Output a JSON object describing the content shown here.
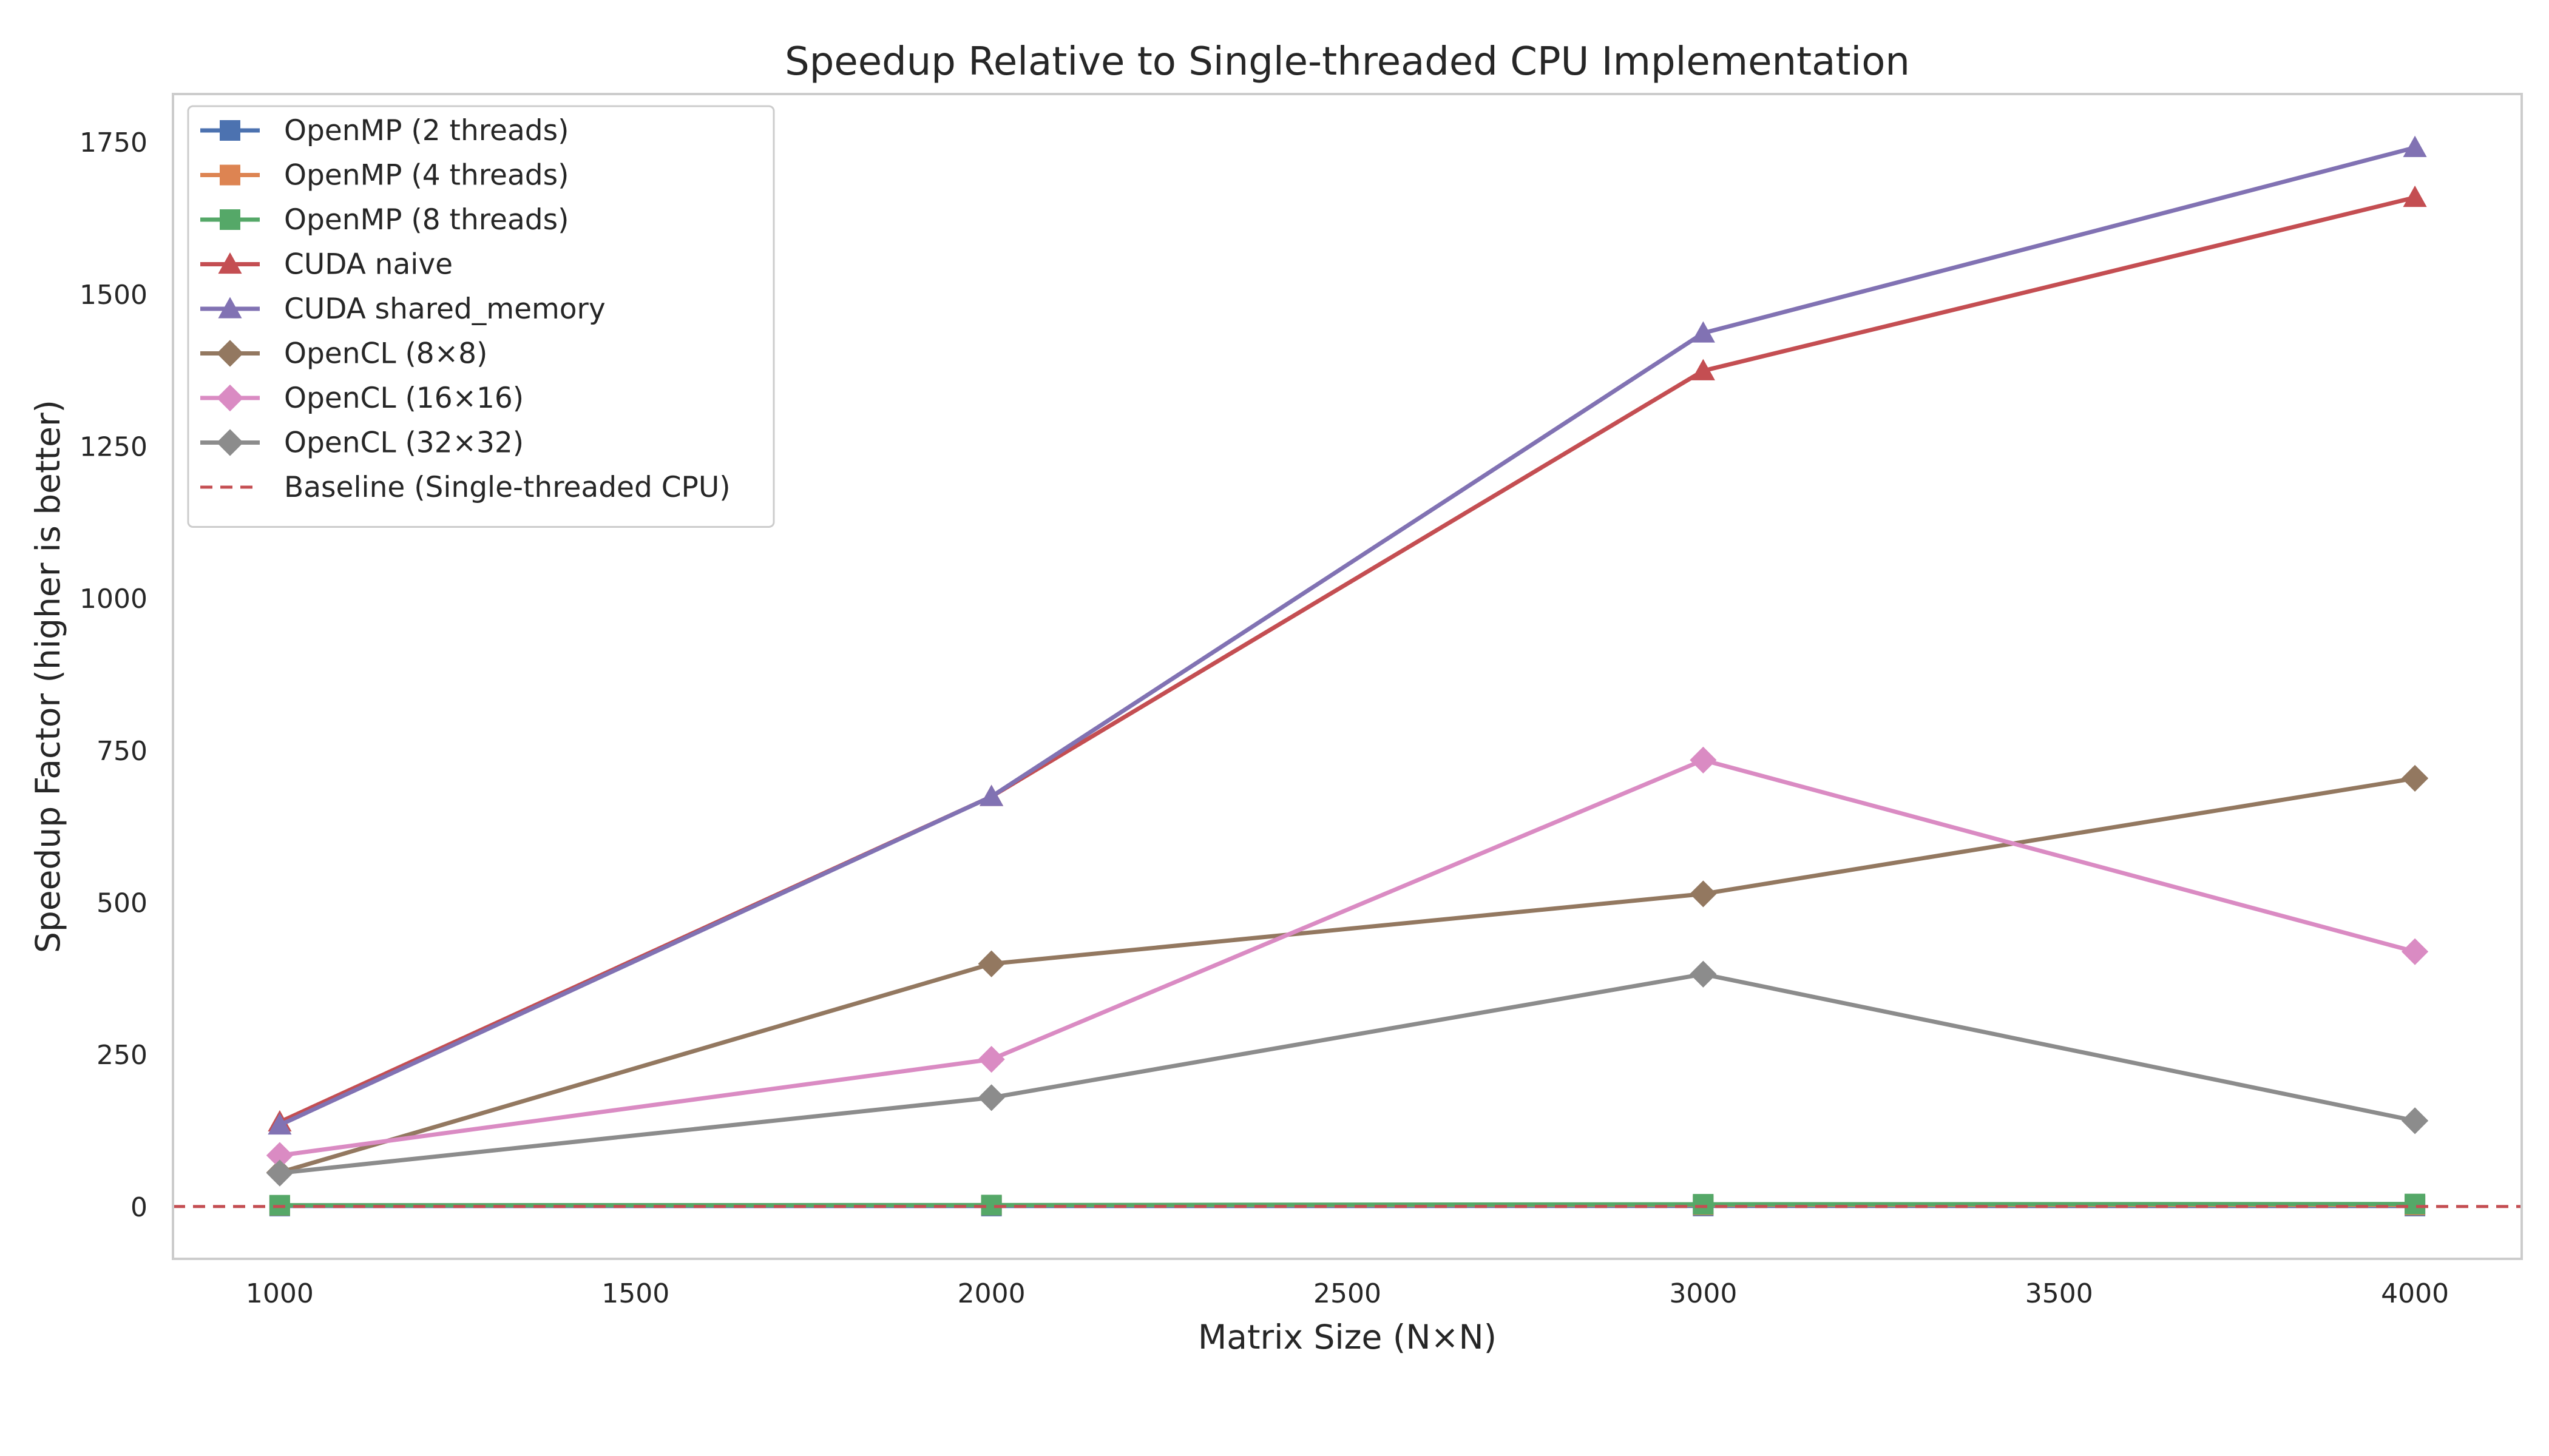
{
  "chart_data": {
    "type": "line",
    "title": "Speedup Relative to Single-threaded CPU Implementation",
    "xlabel": "Matrix Size (N×N)",
    "ylabel": "Speedup Factor (higher is better)",
    "xlim": [
      850,
      4150
    ],
    "ylim": [
      -85,
      1830
    ],
    "xticks": [
      1000,
      1500,
      2000,
      2500,
      3000,
      3500,
      4000
    ],
    "yticks": [
      0,
      250,
      500,
      750,
      1000,
      1250,
      1500,
      1750
    ],
    "x": [
      1000,
      2000,
      3000,
      4000
    ],
    "grid": false,
    "legend_position": "upper-left",
    "series": [
      {
        "name": "OpenMP (2 threads)",
        "marker": "square",
        "color": "#4c72b0",
        "values": [
          1.9,
          1.9,
          2.0,
          1.9
        ]
      },
      {
        "name": "OpenMP (4 threads)",
        "marker": "square",
        "color": "#dd8452",
        "values": [
          2.8,
          3.2,
          3.6,
          3.5
        ]
      },
      {
        "name": "OpenMP (8 threads)",
        "marker": "square",
        "color": "#55a868",
        "values": [
          3.1,
          3.4,
          4.7,
          5.1
        ]
      },
      {
        "name": "CUDA naive",
        "marker": "triangle",
        "color": "#c44e52",
        "values": [
          140,
          675,
          1375,
          1660
        ]
      },
      {
        "name": "CUDA shared_memory",
        "marker": "triangle",
        "color": "#8172b3",
        "values": [
          135,
          675,
          1437,
          1742
        ]
      },
      {
        "name": "OpenCL (8×8)",
        "marker": "diamond",
        "color": "#937860",
        "values": [
          57,
          400,
          515,
          705
        ]
      },
      {
        "name": "OpenCL (16×16)",
        "marker": "diamond",
        "color": "#da8bc3",
        "values": [
          85,
          243,
          735,
          420
        ]
      },
      {
        "name": "OpenCL (32×32)",
        "marker": "diamond",
        "color": "#8c8c8c",
        "values": [
          56,
          180,
          383,
          142
        ]
      }
    ],
    "baseline": {
      "name": "Baseline (Single-threaded CPU)",
      "value": 1,
      "color": "#c44e52",
      "style": "dashed"
    }
  }
}
